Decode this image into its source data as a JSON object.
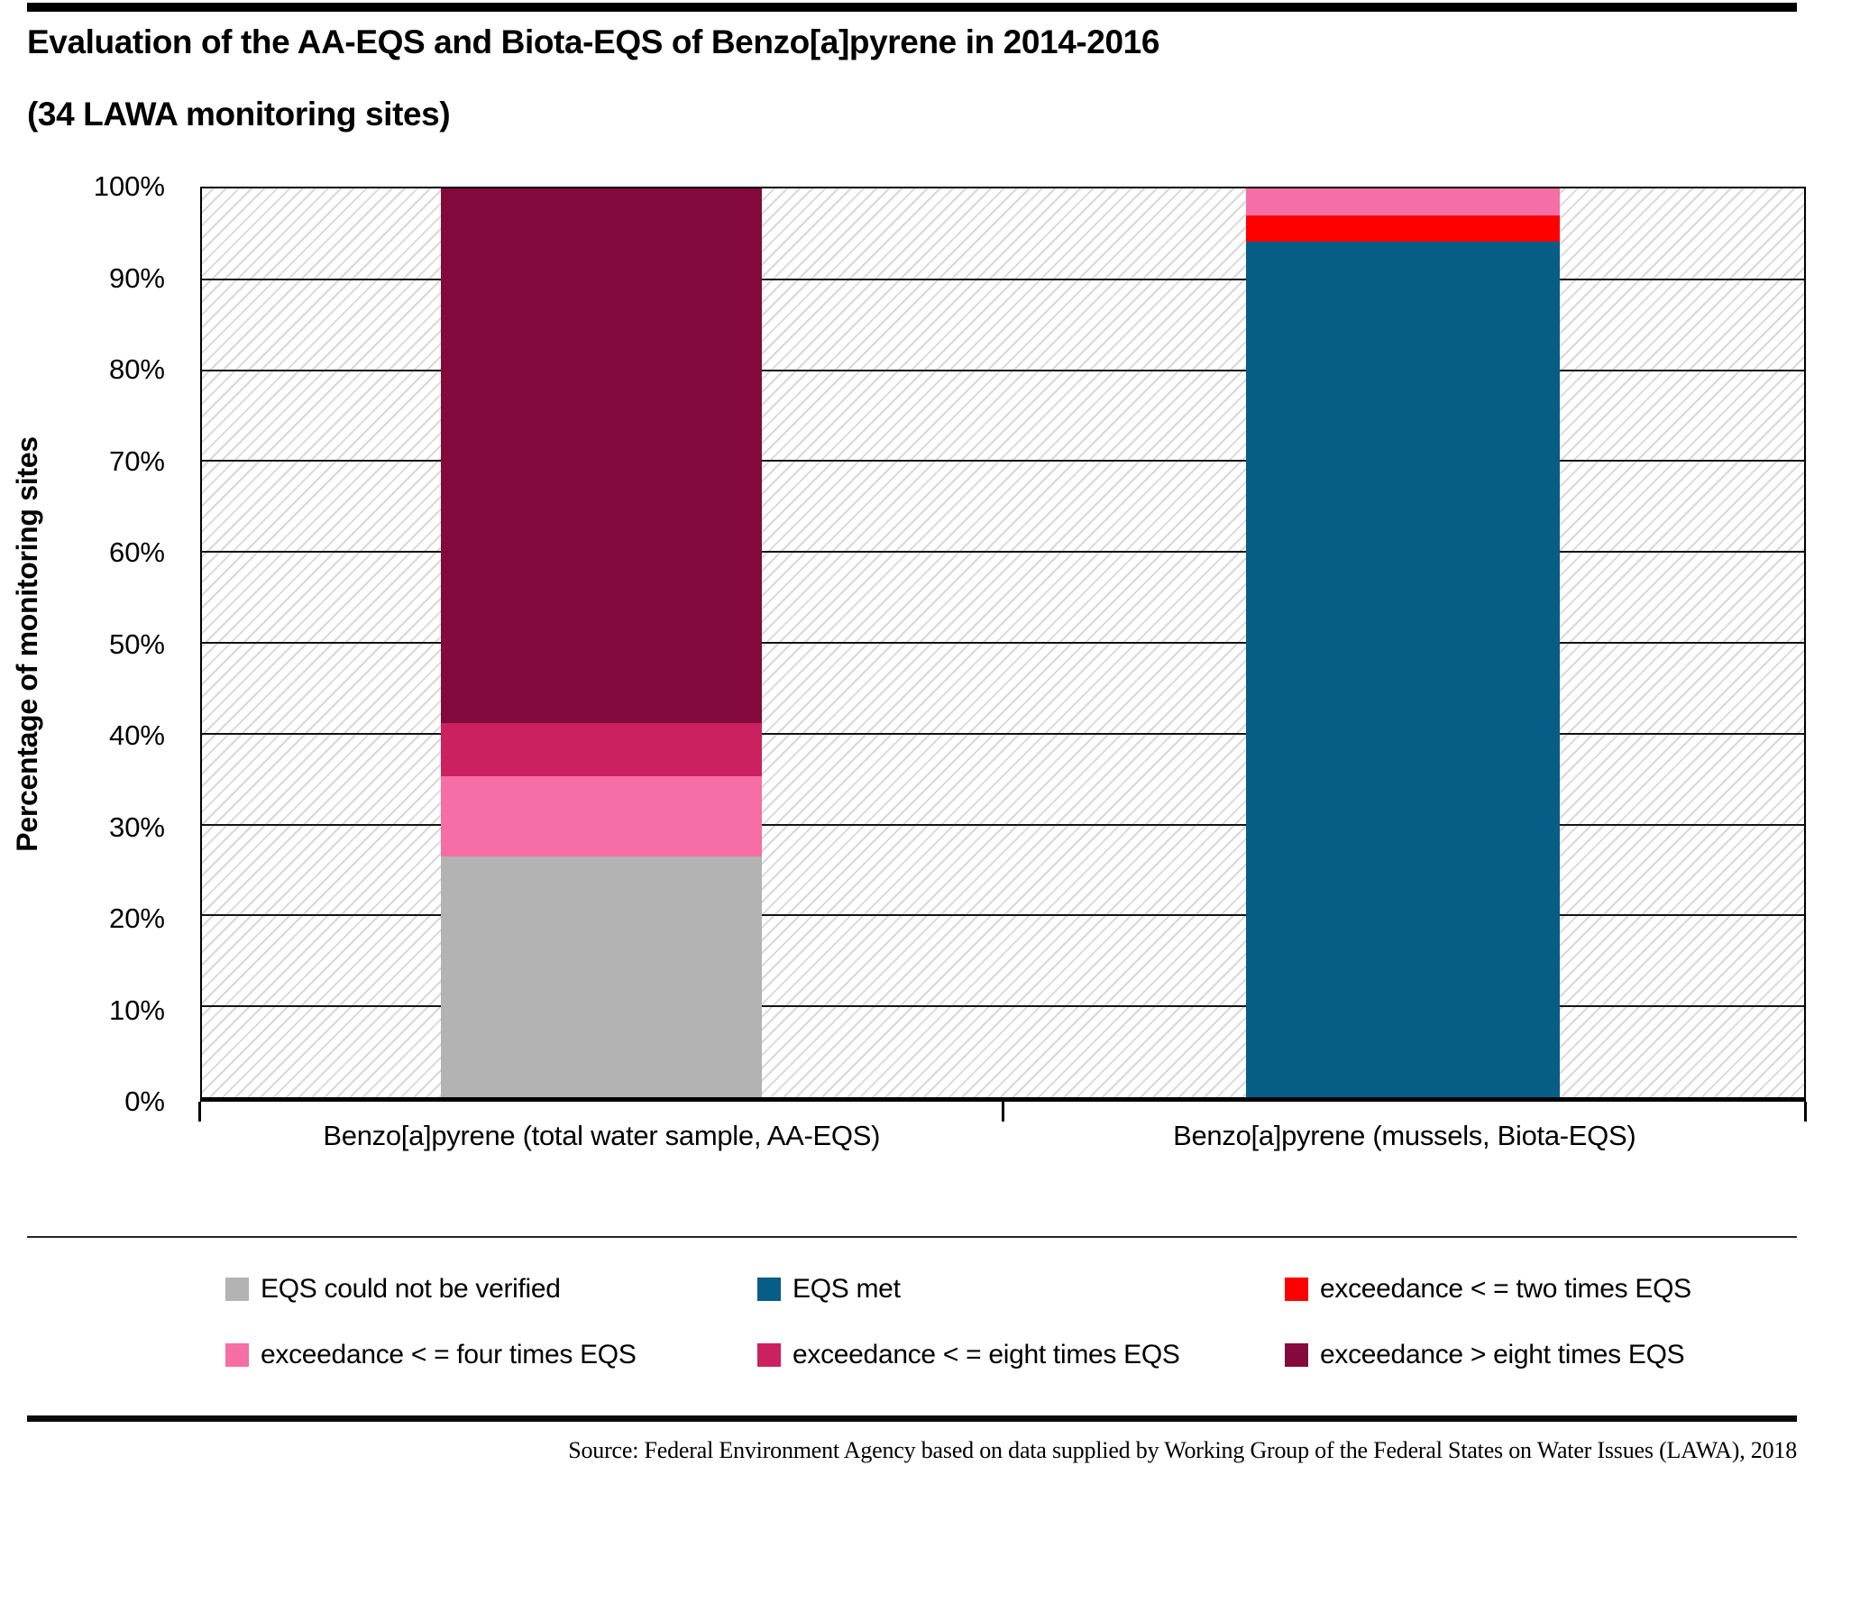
{
  "header": {
    "title": "Evaluation of the AA-EQS and Biota-EQS of Benzo[a]pyrene in 2014-2016",
    "subtitle": "(34 LAWA monitoring sites)"
  },
  "chart_data": {
    "type": "bar",
    "stacked": true,
    "title": "Evaluation of the AA-EQS and Biota-EQS of Benzo[a]pyrene in 2014-2016 (34 LAWA monitoring sites)",
    "categories": [
      "Benzo[a]pyrene (total water sample, AA-EQS)",
      "Benzo[a]pyrene (mussels, Biota-EQS)"
    ],
    "series": [
      {
        "name": "EQS could not be verified",
        "color": "#b3b3b3",
        "values": [
          26.47,
          0
        ]
      },
      {
        "name": "EQS met",
        "color": "#065e86",
        "values": [
          0,
          94.12
        ]
      },
      {
        "name": "exceedance < = two times EQS",
        "color": "#ff0000",
        "values": [
          0,
          2.94
        ]
      },
      {
        "name": "exceedance < = four times EQS",
        "color": "#f56ea5",
        "values": [
          8.82,
          2.94
        ]
      },
      {
        "name": "exceedance < = eight times EQS",
        "color": "#cb2161",
        "values": [
          5.88,
          0
        ]
      },
      {
        "name": "exceedance > eight times EQS",
        "color": "#84093c",
        "values": [
          58.82,
          0
        ]
      }
    ],
    "xlabel": "",
    "ylabel": "Percentage of monitoring sites",
    "ylim": [
      0,
      100
    ],
    "yticks": [
      "0%",
      "10%",
      "20%",
      "30%",
      "40%",
      "50%",
      "60%",
      "70%",
      "80%",
      "90%",
      "100%"
    ],
    "grid": true,
    "plot_background": "diagonal-hatch",
    "hatch_color": "#d8d8d8",
    "legend_position": "bottom"
  },
  "footer": {
    "source": "Source: Federal Environment Agency based on data supplied by Working Group of the Federal States on Water Issues (LAWA), 2018"
  }
}
